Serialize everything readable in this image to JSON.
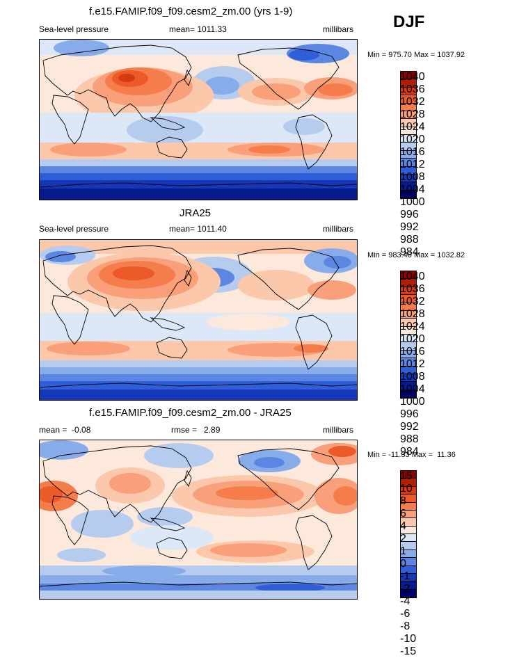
{
  "season": "DJF",
  "panels": [
    {
      "title": "f.e15.FAMIP.f09_f09.cesm2_zm.00 (yrs 1-9)",
      "left_label": "Sea-level pressure",
      "center_label": "mean= 1011.33",
      "right_label": "millibars",
      "minmax": "Min = 975.70 Max = 1037.92",
      "colorbar": {
        "labels": [
          "1040",
          "1036",
          "1032",
          "1028",
          "1024",
          "1020",
          "1016",
          "1012",
          "1008",
          "1004",
          "1000",
          "996",
          "992",
          "988",
          "984"
        ],
        "colors": [
          "#8b0000",
          "#b01e06",
          "#d63a12",
          "#ec5a2a",
          "#f57d4c",
          "#f9a07a",
          "#fcc8ac",
          "#fde8dc",
          "#dce8f7",
          "#b5ccef",
          "#88acea",
          "#5b87e3",
          "#2f5fd8",
          "#1438b8",
          "#061c8c",
          "#00006b"
        ]
      }
    },
    {
      "title": "JRA25",
      "left_label": "Sea-level pressure",
      "center_label": "mean= 1011.40",
      "right_label": "millibars",
      "minmax": "Min = 983.46 Max = 1032.82",
      "colorbar": {
        "labels": [
          "1040",
          "1036",
          "1032",
          "1028",
          "1024",
          "1020",
          "1016",
          "1012",
          "1008",
          "1004",
          "1000",
          "996",
          "992",
          "988",
          "984"
        ],
        "colors": [
          "#8b0000",
          "#b01e06",
          "#d63a12",
          "#ec5a2a",
          "#f57d4c",
          "#f9a07a",
          "#fcc8ac",
          "#fde8dc",
          "#dce8f7",
          "#b5ccef",
          "#88acea",
          "#5b87e3",
          "#2f5fd8",
          "#1438b8",
          "#061c8c",
          "#00006b"
        ]
      }
    },
    {
      "title": "f.e15.FAMIP.f09_f09.cesm2_zm.00 - JRA25",
      "left_label": "mean =  -0.08",
      "center_label": "rmse =   2.89",
      "right_label": "millibars",
      "minmax": "Min = -11.33 Max =  11.36",
      "colorbar": {
        "labels": [
          "15",
          "10",
          "8",
          "6",
          "4",
          "2",
          "1",
          "0",
          "-1",
          "-2",
          "-4",
          "-6",
          "-8",
          "-10",
          "-15"
        ],
        "colors": [
          "#8b0000",
          "#b01e06",
          "#d63a12",
          "#ec5a2a",
          "#f57d4c",
          "#f9a07a",
          "#fcc8ac",
          "#fde8dc",
          "#dce8f7",
          "#b5ccef",
          "#88acea",
          "#5b87e3",
          "#2f5fd8",
          "#1438b8",
          "#061c8c",
          "#00006b"
        ]
      }
    }
  ]
}
